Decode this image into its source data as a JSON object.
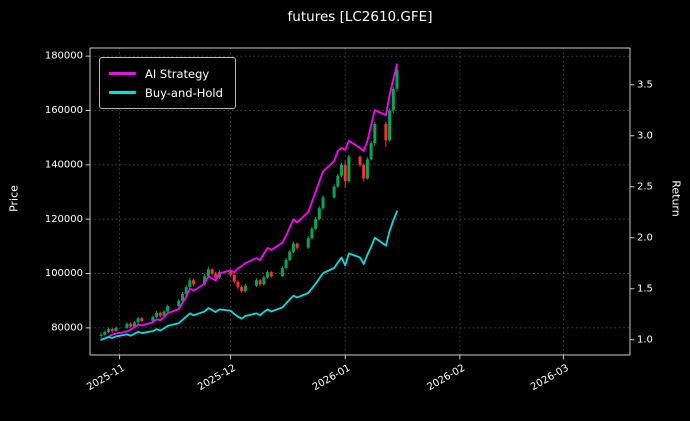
{
  "title": "futures [LC2610.GFE]",
  "legend": {
    "items": [
      {
        "label": "AI Strategy",
        "color": "#ff00ff"
      },
      {
        "label": "Buy-and-Hold",
        "color": "#00e0e0"
      }
    ]
  },
  "axes": {
    "y_left_label": "Price",
    "y_right_label": "Return",
    "price_ticks": [
      80000,
      100000,
      120000,
      140000,
      160000,
      180000
    ],
    "return_ticks": [
      1.0,
      1.5,
      2.0,
      2.5,
      3.0,
      3.5
    ],
    "x_ticks": [
      {
        "label": "2025-11",
        "date": "2025-11-01"
      },
      {
        "label": "2025-12",
        "date": "2025-12-01"
      },
      {
        "label": "2026-01",
        "date": "2026-01-01"
      },
      {
        "label": "2026-02",
        "date": "2026-02-01"
      },
      {
        "label": "2026-03",
        "date": "2026-03-01"
      }
    ],
    "price_range": [
      70000,
      183000
    ],
    "return_range": [
      0.85,
      3.86
    ],
    "x_range": [
      "2025-10-24",
      "2026-03-19"
    ]
  },
  "colors": {
    "background": "#000000",
    "text": "#ffffff",
    "grid": "#4d4d4d",
    "frame": "#c8c8c8",
    "up": "#00a857",
    "down": "#ff3030"
  },
  "chart_data": {
    "type": "candlestick+line",
    "title": "futures [LC2610.GFE]",
    "xlabel": "",
    "ylabel_left": "Price",
    "ylabel_right": "Return",
    "ylim_price": [
      70000,
      183000
    ],
    "ylim_return": [
      0.85,
      3.86
    ],
    "grid": true,
    "legend_position": "upper left",
    "x": [
      "2025-10-27",
      "2025-10-28",
      "2025-10-29",
      "2025-10-30",
      "2025-10-31",
      "2025-11-03",
      "2025-11-04",
      "2025-11-05",
      "2025-11-06",
      "2025-11-07",
      "2025-11-10",
      "2025-11-11",
      "2025-11-12",
      "2025-11-13",
      "2025-11-14",
      "2025-11-17",
      "2025-11-18",
      "2025-11-19",
      "2025-11-20",
      "2025-11-21",
      "2025-11-24",
      "2025-11-25",
      "2025-11-26",
      "2025-11-27",
      "2025-11-28",
      "2025-12-01",
      "2025-12-02",
      "2025-12-03",
      "2025-12-04",
      "2025-12-05",
      "2025-12-08",
      "2025-12-09",
      "2025-12-10",
      "2025-12-11",
      "2025-12-12",
      "2025-12-15",
      "2025-12-16",
      "2025-12-17",
      "2025-12-18",
      "2025-12-19",
      "2025-12-22",
      "2025-12-23",
      "2025-12-24",
      "2025-12-25",
      "2025-12-26",
      "2025-12-29",
      "2025-12-30",
      "2025-12-31",
      "2026-01-01",
      "2026-01-02",
      "2026-01-05",
      "2026-01-06",
      "2026-01-07",
      "2026-01-08",
      "2026-01-09",
      "2026-01-12",
      "2026-01-13",
      "2026-01-14",
      "2026-01-15"
    ],
    "candles": {
      "up_color": "#00a857",
      "down_color": "#ff3030",
      "ohlc": [
        [
          77000,
          78200,
          76500,
          77500
        ],
        [
          77500,
          79000,
          77200,
          78500
        ],
        [
          78500,
          80200,
          78000,
          79500
        ],
        [
          79500,
          80000,
          78200,
          78800
        ],
        [
          78800,
          80500,
          78500,
          80000
        ],
        [
          80000,
          82000,
          79600,
          81500
        ],
        [
          81500,
          82000,
          80000,
          80500
        ],
        [
          80500,
          82500,
          80200,
          82000
        ],
        [
          82000,
          84000,
          81600,
          83500
        ],
        [
          83500,
          84000,
          82000,
          82500
        ],
        [
          82500,
          84500,
          82200,
          84000
        ],
        [
          84000,
          86200,
          83600,
          85500
        ],
        [
          85500,
          86000,
          84000,
          84500
        ],
        [
          84500,
          86500,
          84200,
          86000
        ],
        [
          86000,
          88500,
          85600,
          88000
        ],
        [
          88000,
          90500,
          87500,
          90000
        ],
        [
          90000,
          93200,
          89500,
          92500
        ],
        [
          92500,
          95800,
          92000,
          95000
        ],
        [
          95000,
          98500,
          94500,
          97500
        ],
        [
          97500,
          98000,
          95200,
          96000
        ],
        [
          96000,
          99800,
          95500,
          99000
        ],
        [
          99000,
          102500,
          98500,
          101500
        ],
        [
          101500,
          102000,
          99400,
          100000
        ],
        [
          100000,
          100600,
          97800,
          98500
        ],
        [
          98500,
          101200,
          98000,
          100500
        ],
        [
          100500,
          101000,
          98800,
          99500
        ],
        [
          99500,
          100000,
          96400,
          97000
        ],
        [
          97000,
          97500,
          94200,
          95000
        ],
        [
          95000,
          95600,
          92800,
          93500
        ],
        [
          93500,
          96200,
          93000,
          95500
        ],
        [
          95500,
          98200,
          95000,
          97500
        ],
        [
          97500,
          98000,
          95400,
          96000
        ],
        [
          96000,
          99200,
          95600,
          98500
        ],
        [
          98500,
          101200,
          98000,
          100500
        ],
        [
          100500,
          101000,
          98400,
          99000
        ],
        [
          99000,
          102800,
          98600,
          102000
        ],
        [
          102000,
          105800,
          101500,
          105000
        ],
        [
          105000,
          108800,
          104500,
          108000
        ],
        [
          108000,
          111800,
          107500,
          111000
        ],
        [
          111000,
          111500,
          108800,
          109500
        ],
        [
          109500,
          113800,
          109000,
          113000
        ],
        [
          113000,
          117200,
          112500,
          116500
        ],
        [
          116500,
          120800,
          116000,
          120000
        ],
        [
          120000,
          124800,
          119500,
          124000
        ],
        [
          124000,
          128800,
          123500,
          128000
        ],
        [
          128000,
          132800,
          127500,
          132000
        ],
        [
          132000,
          136800,
          131500,
          136000
        ],
        [
          136000,
          140800,
          135500,
          140000
        ],
        [
          140000,
          141500,
          131500,
          134000
        ],
        [
          134000,
          143800,
          133500,
          143000
        ],
        [
          143000,
          143500,
          139200,
          140000
        ],
        [
          140000,
          140500,
          133800,
          135000
        ],
        [
          135000,
          142800,
          134500,
          142000
        ],
        [
          142000,
          148800,
          141500,
          148000
        ],
        [
          148000,
          155800,
          147000,
          155000
        ],
        [
          155000,
          156000,
          146500,
          149000
        ],
        [
          149000,
          160800,
          148500,
          160000
        ],
        [
          160000,
          168800,
          159000,
          168000
        ],
        [
          168000,
          176000,
          167000,
          175000
        ]
      ]
    },
    "series": [
      {
        "name": "AI Strategy",
        "axis": "return",
        "color": "#ff00ff",
        "values": [
          1.0,
          1.01,
          1.03,
          1.05,
          1.06,
          1.08,
          1.1,
          1.12,
          1.15,
          1.14,
          1.17,
          1.2,
          1.19,
          1.22,
          1.26,
          1.3,
          1.36,
          1.42,
          1.5,
          1.48,
          1.55,
          1.62,
          1.6,
          1.58,
          1.65,
          1.68,
          1.66,
          1.7,
          1.72,
          1.75,
          1.8,
          1.78,
          1.84,
          1.9,
          1.88,
          1.95,
          2.02,
          2.1,
          2.18,
          2.15,
          2.25,
          2.35,
          2.45,
          2.55,
          2.65,
          2.75,
          2.85,
          2.88,
          2.86,
          2.95,
          2.88,
          2.85,
          2.95,
          3.1,
          3.25,
          3.2,
          3.4,
          3.55,
          3.7
        ]
      },
      {
        "name": "Buy-and-Hold",
        "axis": "return",
        "color": "#00e0e0",
        "values": [
          1.0,
          1.013,
          1.026,
          1.017,
          1.032,
          1.052,
          1.039,
          1.058,
          1.077,
          1.065,
          1.084,
          1.103,
          1.09,
          1.11,
          1.135,
          1.161,
          1.194,
          1.226,
          1.258,
          1.239,
          1.277,
          1.31,
          1.29,
          1.271,
          1.297,
          1.284,
          1.252,
          1.226,
          1.206,
          1.232,
          1.258,
          1.239,
          1.271,
          1.297,
          1.277,
          1.316,
          1.355,
          1.394,
          1.432,
          1.413,
          1.458,
          1.503,
          1.548,
          1.6,
          1.652,
          1.703,
          1.755,
          1.806,
          1.729,
          1.845,
          1.806,
          1.742,
          1.832,
          1.91,
          2.0,
          1.922,
          2.065,
          2.168,
          2.258
        ]
      }
    ]
  }
}
